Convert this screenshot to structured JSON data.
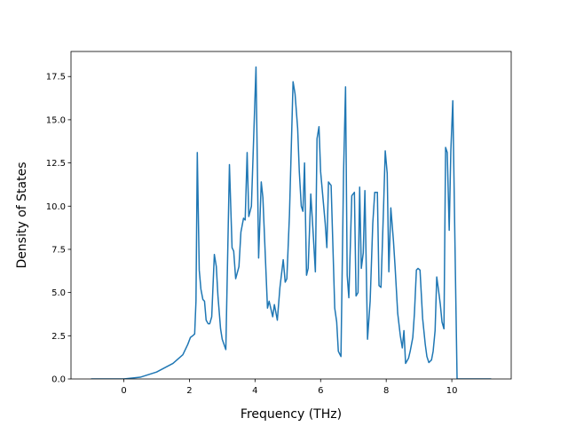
{
  "chart_data": {
    "type": "line",
    "xlabel": "Frequency (THz)",
    "ylabel": "Density of States",
    "xlim": [
      -1.61,
      11.81
    ],
    "ylim": [
      0,
      18.95
    ],
    "xticks": [
      0,
      2,
      4,
      6,
      8,
      10
    ],
    "yticks": [
      {
        "value": 0,
        "label": "0.0"
      },
      2.5,
      {
        "value": 5,
        "label": "5.0"
      },
      7.5,
      {
        "value": 10,
        "label": "10.0"
      },
      12.5,
      {
        "value": 15,
        "label": "15.0"
      },
      17.5
    ],
    "series": [
      {
        "color": "#1f77b4",
        "x": [
          -1.0,
          0,
          0.5,
          1.0,
          1.5,
          1.8,
          1.95,
          2.03,
          2.1,
          2.16,
          2.2,
          2.24,
          2.3,
          2.35,
          2.41,
          2.46,
          2.51,
          2.57,
          2.62,
          2.68,
          2.76,
          2.82,
          2.87,
          2.95,
          3.0,
          3.11,
          3.22,
          3.3,
          3.35,
          3.41,
          3.51,
          3.57,
          3.65,
          3.7,
          3.76,
          3.81,
          3.89,
          4.03,
          4.11,
          4.19,
          4.24,
          4.38,
          4.43,
          4.54,
          4.59,
          4.68,
          4.76,
          4.86,
          4.92,
          4.97,
          5.05,
          5.16,
          5.22,
          5.3,
          5.35,
          5.41,
          5.46,
          5.51,
          5.57,
          5.62,
          5.7,
          5.78,
          5.84,
          5.89,
          5.95,
          6.0,
          6.14,
          6.19,
          6.24,
          6.32,
          6.43,
          6.49,
          6.54,
          6.62,
          6.7,
          6.76,
          6.81,
          6.86,
          6.95,
          7.03,
          7.08,
          7.14,
          7.19,
          7.24,
          7.3,
          7.35,
          7.43,
          7.51,
          7.59,
          7.65,
          7.73,
          7.78,
          7.84,
          7.92,
          7.97,
          8.03,
          8.08,
          8.14,
          8.22,
          8.27,
          8.35,
          8.43,
          8.49,
          8.54,
          8.59,
          8.68,
          8.73,
          8.81,
          8.86,
          8.92,
          8.97,
          9.03,
          9.11,
          9.19,
          9.24,
          9.3,
          9.38,
          9.43,
          9.49,
          9.54,
          9.59,
          9.65,
          9.7,
          9.76,
          9.81,
          9.86,
          9.92,
          9.97,
          10.03,
          10.11,
          10.16,
          11.2
        ],
        "values": [
          0,
          0,
          0.1,
          0.4,
          0.9,
          1.4,
          2.0,
          2.4,
          2.5,
          2.6,
          4.5,
          13.1,
          6.3,
          5.2,
          4.6,
          4.5,
          3.4,
          3.2,
          3.2,
          3.6,
          7.2,
          6.5,
          4.8,
          2.9,
          2.3,
          1.7,
          12.4,
          7.6,
          7.4,
          5.8,
          6.5,
          8.5,
          9.3,
          9.2,
          13.1,
          9.4,
          10,
          18.05,
          7.0,
          11.4,
          10.5,
          4.1,
          4.5,
          3.6,
          4.3,
          3.4,
          5.3,
          6.9,
          5.6,
          5.8,
          9.5,
          17.2,
          16.5,
          14.5,
          12,
          10,
          9.7,
          12.5,
          6.0,
          6.4,
          10.7,
          8.2,
          6.2,
          13.9,
          14.6,
          12,
          9,
          7.6,
          11.4,
          11.2,
          4.1,
          3.3,
          1.6,
          1.3,
          12,
          16.9,
          6,
          4.7,
          10.6,
          10.8,
          4.8,
          5.0,
          11.1,
          6.4,
          7.3,
          10.9,
          2.3,
          4.5,
          9,
          10.8,
          10.8,
          5.4,
          5.3,
          10,
          13.2,
          11.9,
          6.2,
          9.9,
          8,
          6.5,
          3.8,
          2.5,
          1.8,
          2.8,
          0.9,
          1.2,
          1.6,
          2.4,
          3.8,
          6.3,
          6.4,
          6.3,
          3.5,
          2.0,
          1.3,
          0.95,
          1.1,
          1.6,
          2.8,
          5.9,
          5.2,
          4.3,
          3.3,
          2.9,
          13.4,
          13.1,
          8.6,
          13.2,
          16.1,
          6,
          0,
          0
        ]
      }
    ]
  }
}
